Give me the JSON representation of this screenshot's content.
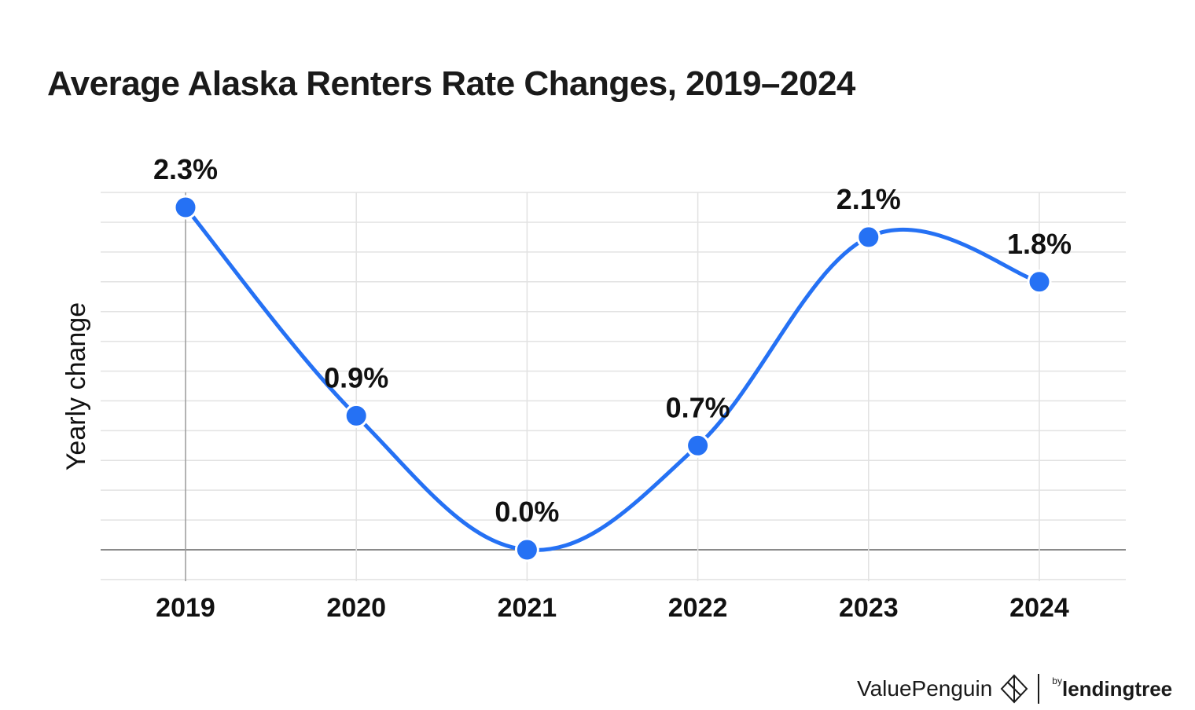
{
  "chart_data": {
    "type": "line",
    "title": "Average Alaska Renters Rate Changes, 2019–2024",
    "ylabel": "Yearly change",
    "xlabel": "",
    "categories": [
      "2019",
      "2020",
      "2021",
      "2022",
      "2023",
      "2024"
    ],
    "values": [
      2.3,
      0.9,
      0.0,
      0.7,
      2.1,
      1.8
    ],
    "data_labels": [
      "2.3%",
      "0.9%",
      "0.0%",
      "0.7%",
      "2.1%",
      "1.8%"
    ],
    "ylim": [
      -0.2,
      2.4
    ],
    "grid": true,
    "smooth": true,
    "line_color": "#2571f4"
  },
  "branding": {
    "brand_name": "ValuePenguin",
    "by_text": "by",
    "partner_name": "lendingtree"
  }
}
